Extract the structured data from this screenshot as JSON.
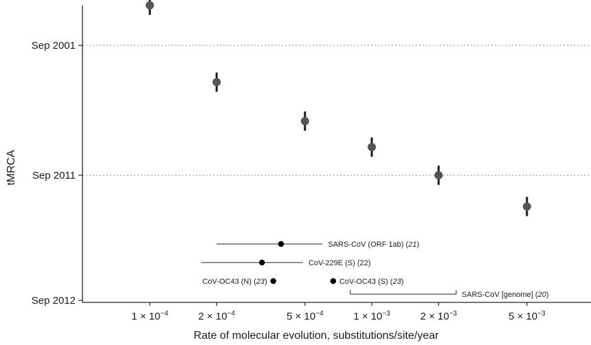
{
  "chart_data": {
    "type": "scatter",
    "xlabel": "Rate of molecular evolution, substitutions/site/year",
    "ylabel": "tMRCA",
    "x_scale": "log",
    "xlim": [
      6e-05,
      0.008
    ],
    "x_ticks": [
      {
        "value": 0.0001,
        "mantissa": "1",
        "exponent": "−4"
      },
      {
        "value": 0.0002,
        "mantissa": "2",
        "exponent": "−4"
      },
      {
        "value": 0.0005,
        "mantissa": "5",
        "exponent": "−4"
      },
      {
        "value": 0.001,
        "mantissa": "1",
        "exponent": "−3"
      },
      {
        "value": 0.002,
        "mantissa": "2",
        "exponent": "−3"
      },
      {
        "value": 0.005,
        "mantissa": "5",
        "exponent": "−3"
      }
    ],
    "y_ticks": [
      {
        "label": "Sep 2001",
        "gridline": true
      },
      {
        "label": "Sep 2011",
        "gridline": true
      },
      {
        "label": "Sep 2012",
        "gridline": false
      }
    ],
    "series": [
      {
        "marker": "grey-circle-with-error-bar",
        "points": [
          {
            "x": 0.0001,
            "y": "Aug 1998"
          },
          {
            "x": 0.0002,
            "y": "Jul 2004"
          },
          {
            "x": 0.0005,
            "y": "Jul 2007"
          },
          {
            "x": 0.001,
            "y": "Jul 2009"
          },
          {
            "x": 0.002,
            "y": "Sep 2011"
          },
          {
            "x": 0.005,
            "y": "Dec 2011"
          }
        ]
      }
    ],
    "reference_estimates": [
      {
        "label": "SARS-CoV (ORF 1ab)",
        "citation": "21",
        "citation_italic": true,
        "x": 0.00039,
        "low": 0.0002,
        "high": 0.0006,
        "label_side": "right"
      },
      {
        "label": "CoV-229E (S)",
        "citation": "22",
        "citation_italic": false,
        "x": 0.00032,
        "low": 0.00017,
        "high": 0.00049,
        "label_side": "right"
      },
      {
        "label": "CoV-OC43 (N)",
        "citation": "23",
        "citation_italic": true,
        "x": 0.00036,
        "low": null,
        "high": null,
        "label_side": "left"
      },
      {
        "label": "CoV-OC43 (S)",
        "citation": "23",
        "citation_italic": true,
        "x": 0.00067,
        "low": null,
        "high": null,
        "label_side": "right"
      },
      {
        "label": "SARS-CoV [genome]",
        "citation": "20",
        "citation_italic": true,
        "x": null,
        "low": 0.0008,
        "high": 0.0024,
        "label_side": "right"
      }
    ],
    "colors": {
      "points": "#555555",
      "error_bars": "#1a1a1a",
      "reference_points": "#000000",
      "gridlines": "#888888"
    },
    "grid": "dotted horizontal at Sep 2001 and Sep 2011"
  }
}
